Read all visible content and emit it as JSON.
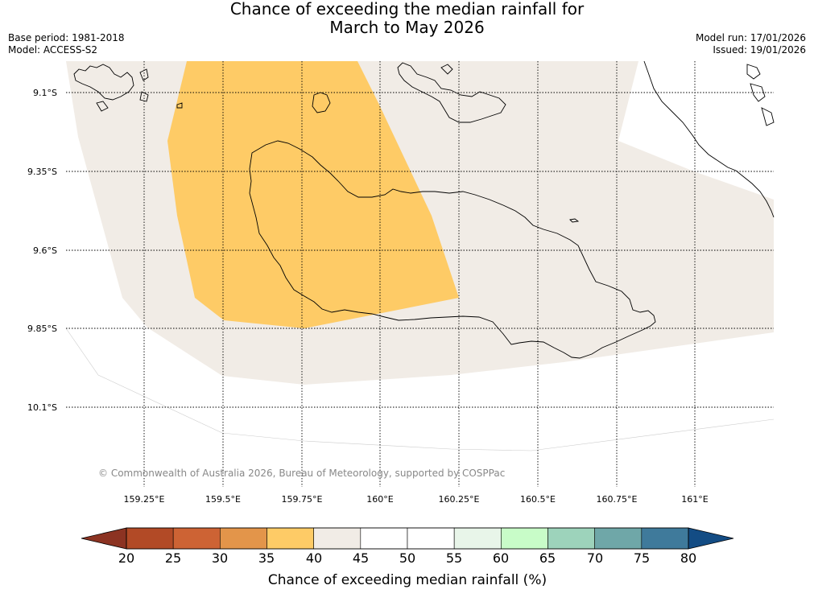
{
  "title_line1": "Chance of exceeding the median rainfall for",
  "title_line2": "March to May 2026",
  "base_period": "Base period: 1981-2018",
  "model": "Model: ACCESS-S2",
  "model_run": "Model run: 17/01/2026",
  "issued": "Issued: 19/01/2026",
  "credit": "© Commonwealth of Australia 2026, Bureau of Meteorology, supported by COSPPac",
  "lat_labels": [
    "9.1°S",
    "9.35°S",
    "9.6°S",
    "9.85°S",
    "10.1°S"
  ],
  "lon_labels": [
    "159.25°E",
    "159.5°E",
    "159.75°E",
    "160°E",
    "160.25°E",
    "160.5°E",
    "160.75°E",
    "161°E"
  ],
  "colorbar": {
    "label": "Chance of exceeding median rainfall (%)",
    "ticks": [
      "20",
      "25",
      "30",
      "35",
      "40",
      "45",
      "50",
      "55",
      "60",
      "65",
      "70",
      "75",
      "80"
    ],
    "colors": [
      "#b24a26",
      "#cd6334",
      "#e3954a",
      "#fecb66",
      "#f1ece6",
      "#ffffff",
      "#ffffff",
      "#e8f5e9",
      "#c8fcc8",
      "#9dd3bb",
      "#6fa7a8",
      "#3f7a9b"
    ],
    "under_color": "#8c3322",
    "over_color": "#134c84"
  },
  "legend": {
    "color_35_40": "#fecb66",
    "color_40_45": "#f1ece6"
  }
}
